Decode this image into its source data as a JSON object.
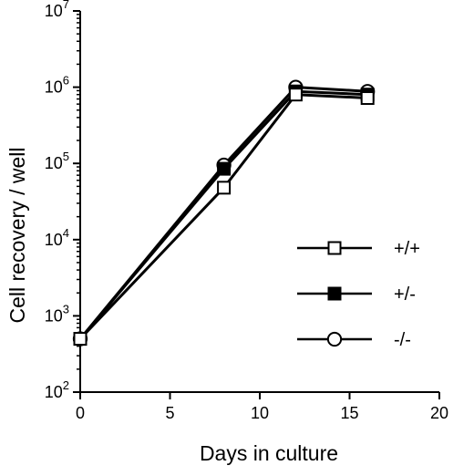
{
  "chart_data": {
    "type": "line",
    "xlabel": "Days in culture",
    "ylabel": "Cell recovery / well",
    "xlim": [
      0,
      20
    ],
    "ylim": [
      100,
      10000000
    ],
    "yscale": "log",
    "grid": false,
    "legend_position": "right",
    "x_ticks": [
      {
        "value": 0,
        "label": "0"
      },
      {
        "value": 5,
        "label": "5"
      },
      {
        "value": 10,
        "label": "10"
      },
      {
        "value": 15,
        "label": "15"
      },
      {
        "value": 20,
        "label": "20"
      }
    ],
    "y_ticks": [
      {
        "value": 100,
        "base": "10",
        "exp": "2"
      },
      {
        "value": 1000,
        "base": "10",
        "exp": "3"
      },
      {
        "value": 10000,
        "base": "10",
        "exp": "4"
      },
      {
        "value": 100000,
        "base": "10",
        "exp": "5"
      },
      {
        "value": 1000000,
        "base": "10",
        "exp": "6"
      },
      {
        "value": 10000000,
        "base": "10",
        "exp": "7"
      }
    ],
    "series": [
      {
        "name": "-/-",
        "marker": "circle-open",
        "color": "#000000",
        "x": [
          0,
          8,
          12,
          16
        ],
        "y": [
          500,
          95000,
          1000000,
          880000
        ]
      },
      {
        "name": "+/-",
        "marker": "square-filled",
        "color": "#000000",
        "x": [
          0,
          8,
          12,
          16
        ],
        "y": [
          500,
          85000,
          880000,
          800000
        ]
      },
      {
        "name": "+/+",
        "marker": "square-open",
        "color": "#000000",
        "x": [
          0,
          8,
          12,
          16
        ],
        "y": [
          500,
          48000,
          800000,
          720000
        ]
      }
    ]
  }
}
